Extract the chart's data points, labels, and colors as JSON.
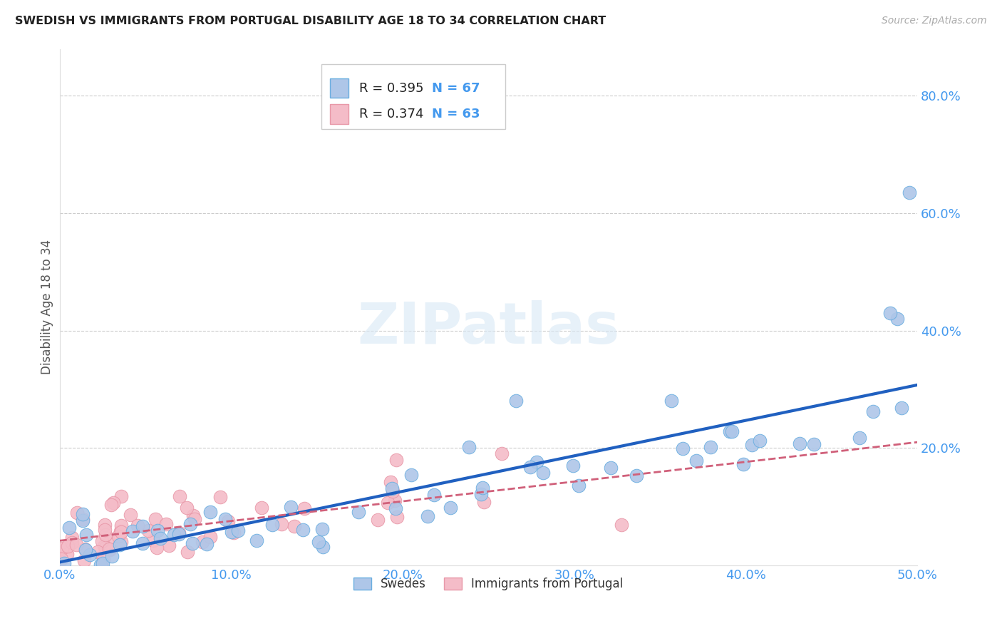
{
  "title": "SWEDISH VS IMMIGRANTS FROM PORTUGAL DISABILITY AGE 18 TO 34 CORRELATION CHART",
  "source": "Source: ZipAtlas.com",
  "ylabel": "Disability Age 18 to 34",
  "xlim": [
    0.0,
    0.5
  ],
  "ylim": [
    0.0,
    0.88
  ],
  "xtick_vals": [
    0.0,
    0.1,
    0.2,
    0.3,
    0.4,
    0.5
  ],
  "ytick_vals": [
    0.2,
    0.4,
    0.6,
    0.8
  ],
  "ytick_labels": [
    "20.0%",
    "40.0%",
    "60.0%",
    "80.0%"
  ],
  "xtick_labels": [
    "0.0%",
    "10.0%",
    "20.0%",
    "30.0%",
    "40.0%",
    "50.0%"
  ],
  "swedes_R": 0.395,
  "swedes_N": 67,
  "portugal_R": 0.374,
  "portugal_N": 63,
  "swedes_color": "#aec6e8",
  "swedes_edge_color": "#6aaee0",
  "swedes_line_color": "#2060c0",
  "portugal_color": "#f4bcc8",
  "portugal_edge_color": "#e898a8",
  "portugal_line_color": "#d0607a",
  "legend_label_swedes": "Swedes",
  "legend_label_portugal": "Immigrants from Portugal",
  "watermark_text": "ZIPatlas",
  "background_color": "#ffffff",
  "grid_color": "#cccccc",
  "title_color": "#222222",
  "source_color": "#aaaaaa",
  "tick_color": "#4499ee",
  "ylabel_color": "#555555"
}
